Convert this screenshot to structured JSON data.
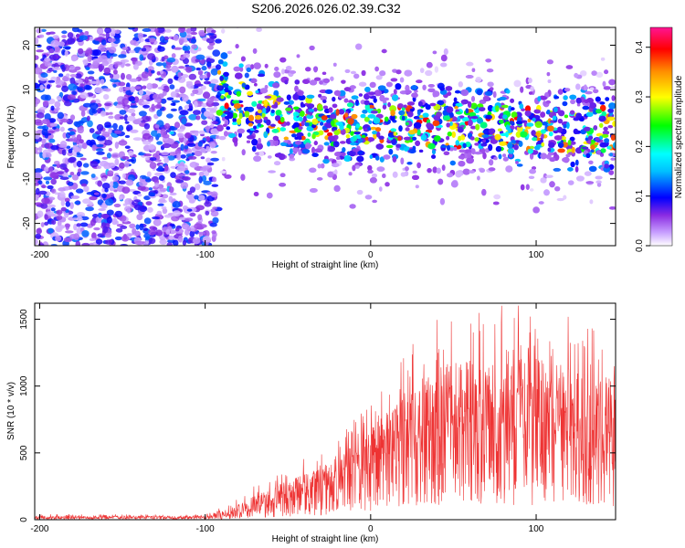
{
  "title": "S206.2026.026.02.39.C32",
  "chart_data": [
    {
      "type": "heatmap",
      "xlabel": "Height of straight line (km)",
      "ylabel": "Frequency (Hz)",
      "xlim": [
        -203,
        148
      ],
      "ylim": [
        -25,
        24
      ],
      "xticks": [
        -200,
        -100,
        0,
        100
      ],
      "yticks": [
        -20,
        -10,
        0,
        10,
        20
      ],
      "colorbar": {
        "label": "Normalized spectral amplitude",
        "range": [
          0.0,
          0.44
        ],
        "ticks": [
          0.0,
          0.1,
          0.2,
          0.3,
          0.4
        ],
        "colors": [
          "#ffffff",
          "#8a2be2",
          "#0000ff",
          "#00ffff",
          "#00ff00",
          "#ffff00",
          "#ff8c00",
          "#ff0000",
          "#ff1493"
        ]
      },
      "regions": [
        {
          "x_range": [
            -203,
            -92
          ],
          "y_range": [
            -25,
            24
          ],
          "description_amplitude": "scattered low (0.05-0.12)"
        },
        {
          "x_range": [
            -92,
            148
          ],
          "y_range": [
            -8,
            10
          ],
          "description_amplitude": "band centered near 2 Hz, up to 0.42"
        }
      ],
      "band_center_hz": [
        {
          "x": -90,
          "y": 9
        },
        {
          "x": -70,
          "y": 5
        },
        {
          "x": -40,
          "y": 3
        },
        {
          "x": 0,
          "y": 2
        },
        {
          "x": 50,
          "y": 2
        },
        {
          "x": 100,
          "y": 1
        },
        {
          "x": 148,
          "y": 1
        }
      ]
    },
    {
      "type": "line",
      "xlabel": "Height of straight line (km)",
      "ylabel": "SNR (10 * v/v)",
      "xlim": [
        -203,
        148
      ],
      "ylim": [
        0,
        1620
      ],
      "xticks": [
        -200,
        -100,
        0,
        100
      ],
      "yticks": [
        0,
        500,
        1000,
        1500
      ],
      "color": "#ee3333",
      "envelope": [
        {
          "x": -203,
          "mean": 15,
          "max": 40
        },
        {
          "x": -100,
          "mean": 15,
          "max": 40
        },
        {
          "x": -85,
          "mean": 40,
          "max": 120
        },
        {
          "x": -60,
          "mean": 120,
          "max": 350
        },
        {
          "x": -30,
          "mean": 230,
          "max": 520
        },
        {
          "x": 0,
          "mean": 420,
          "max": 900
        },
        {
          "x": 20,
          "mean": 600,
          "max": 1250
        },
        {
          "x": 45,
          "mean": 700,
          "max": 1580
        },
        {
          "x": 100,
          "mean": 700,
          "max": 1620
        },
        {
          "x": 148,
          "mean": 650,
          "max": 1400
        }
      ]
    }
  ]
}
